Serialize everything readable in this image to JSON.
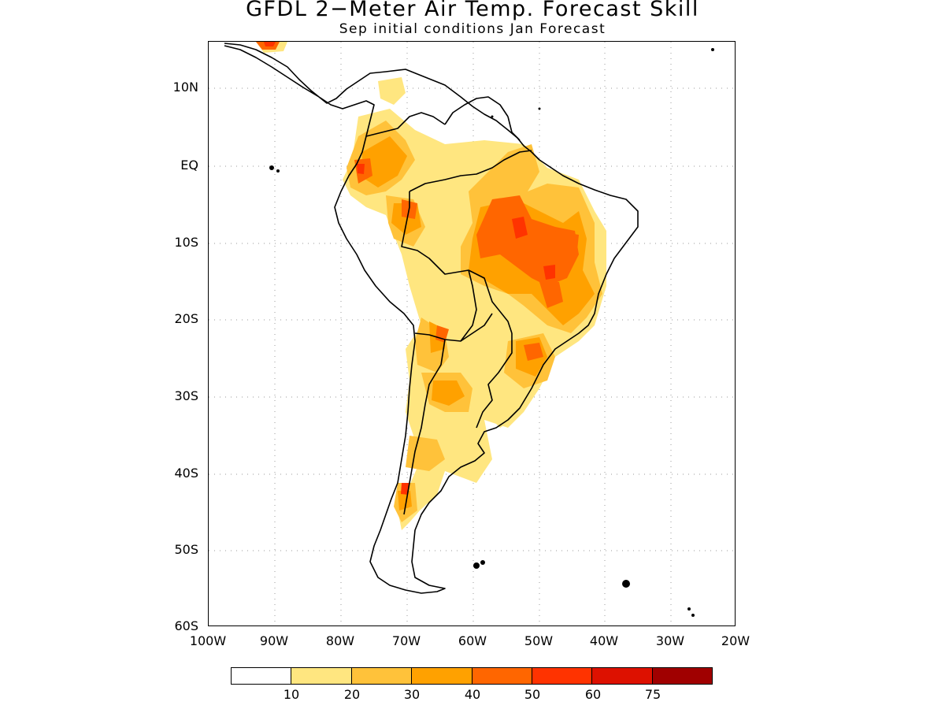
{
  "title": "GFDL 2−Meter Air Temp. Forecast Skill",
  "subtitle": "Sep initial conditions  Jan Forecast",
  "y_axis_labels": [
    "10N",
    "EQ",
    "10S",
    "20S",
    "30S",
    "40S",
    "50S",
    "60S"
  ],
  "x_axis_labels": [
    "100W",
    "90W",
    "80W",
    "70W",
    "60W",
    "50W",
    "40W",
    "30W",
    "20W"
  ],
  "legend": {
    "colors": [
      "#ffffff",
      "#ffe680",
      "#ffc23a",
      "#ffa100",
      "#ff6600",
      "#ff3300",
      "#dd1100",
      "#a00000"
    ],
    "labels": [
      "10",
      "20",
      "30",
      "40",
      "50",
      "60",
      "75"
    ]
  },
  "map_region": {
    "lon_range": [
      "100W",
      "20W"
    ],
    "lat_range": [
      "60S",
      "15N"
    ]
  }
}
